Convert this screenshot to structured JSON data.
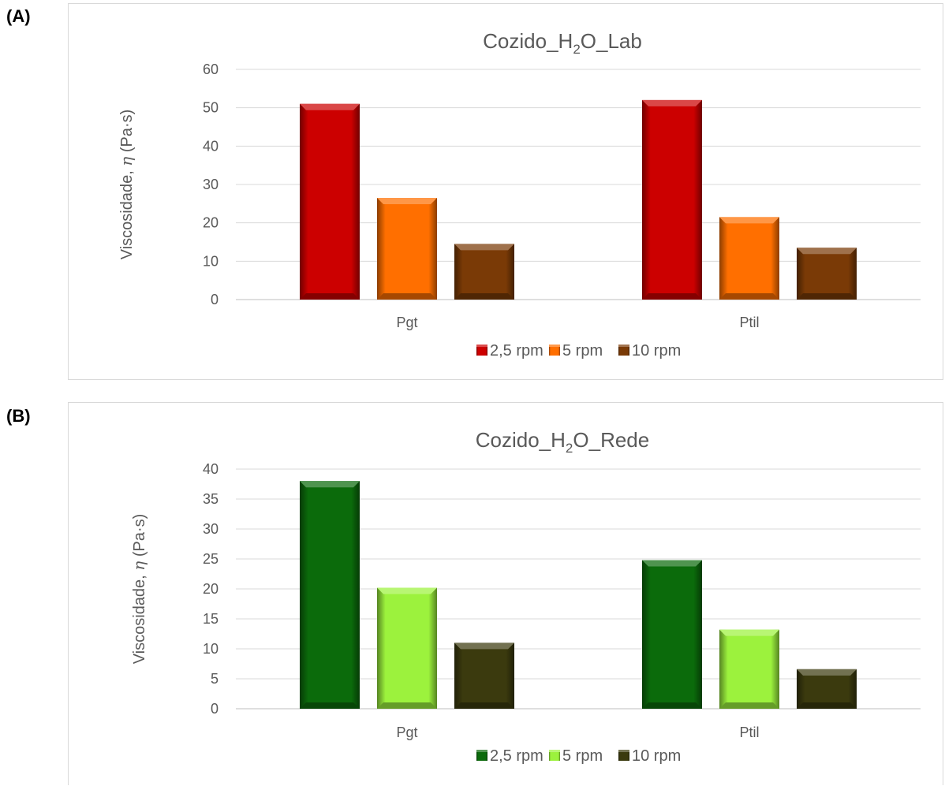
{
  "panels": [
    {
      "label": "(A)"
    },
    {
      "label": "(B)"
    }
  ],
  "chart_data": [
    {
      "type": "bar",
      "title_main": "Cozido_H",
      "title_sub": "2",
      "title_rest": "O_Lab",
      "ylabel_prefix": "Viscosidade, ",
      "ylabel_symbol": "η",
      "ylabel_unit": " (Pa·s)",
      "categories": [
        "Pgt",
        "Ptil"
      ],
      "ylim": [
        0,
        60
      ],
      "yticks": [
        0,
        10,
        20,
        30,
        40,
        50,
        60
      ],
      "grid": true,
      "legend_position": "bottom",
      "series": [
        {
          "name": "2,5 rpm",
          "values": [
            51,
            52
          ],
          "color": "#cc0000"
        },
        {
          "name": "5 rpm",
          "values": [
            26.5,
            21.5
          ],
          "color": "#ff6f00"
        },
        {
          "name": "10 rpm",
          "values": [
            14.5,
            13.5
          ],
          "color": "#7a3a06"
        }
      ]
    },
    {
      "type": "bar",
      "title_main": "Cozido_H",
      "title_sub": "2",
      "title_rest": "O_Rede",
      "ylabel_prefix": "Viscosidade, ",
      "ylabel_symbol": "η",
      "ylabel_unit": " (Pa·s)",
      "categories": [
        "Pgt",
        "Ptil"
      ],
      "ylim": [
        0,
        40
      ],
      "yticks": [
        0,
        5,
        10,
        15,
        20,
        25,
        30,
        35,
        40
      ],
      "grid": true,
      "legend_position": "bottom",
      "series": [
        {
          "name": "2,5 rpm",
          "values": [
            38,
            24.8
          ],
          "color": "#0b6b0b"
        },
        {
          "name": "5 rpm",
          "values": [
            20.2,
            13.2
          ],
          "color": "#9cf23d"
        },
        {
          "name": "10 rpm",
          "values": [
            11,
            6.6
          ],
          "color": "#3b3a0e"
        }
      ]
    }
  ]
}
